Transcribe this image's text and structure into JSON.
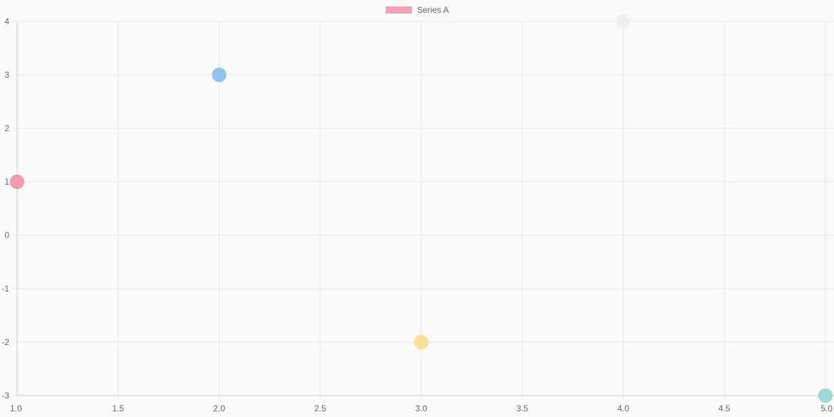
{
  "chart_data": {
    "type": "scatter",
    "title": "",
    "xlabel": "",
    "ylabel": "",
    "xlim": [
      1.0,
      5.0
    ],
    "ylim": [
      -3,
      4
    ],
    "x_ticks": [
      "1.0",
      "1.5",
      "2.0",
      "2.5",
      "3.0",
      "3.5",
      "4.0",
      "4.5",
      "5.0"
    ],
    "y_ticks": [
      "4",
      "3",
      "2",
      "1",
      "0",
      "-1",
      "-2",
      "-3"
    ],
    "grid": true,
    "legend": {
      "placement": "top-center",
      "entries": [
        {
          "name": "Series A",
          "color": "#f2a3b3"
        }
      ]
    },
    "series": [
      {
        "name": "Series A",
        "points": [
          {
            "x": 1,
            "y": 1,
            "color": "#f28ca2"
          },
          {
            "x": 2,
            "y": 3,
            "color": "#7fbbe9"
          },
          {
            "x": 3,
            "y": -2,
            "color": "#f9d98b"
          },
          {
            "x": 4,
            "y": 4,
            "color": "#ececec"
          },
          {
            "x": 5,
            "y": -3,
            "color": "#8fd3d3"
          }
        ]
      }
    ]
  }
}
